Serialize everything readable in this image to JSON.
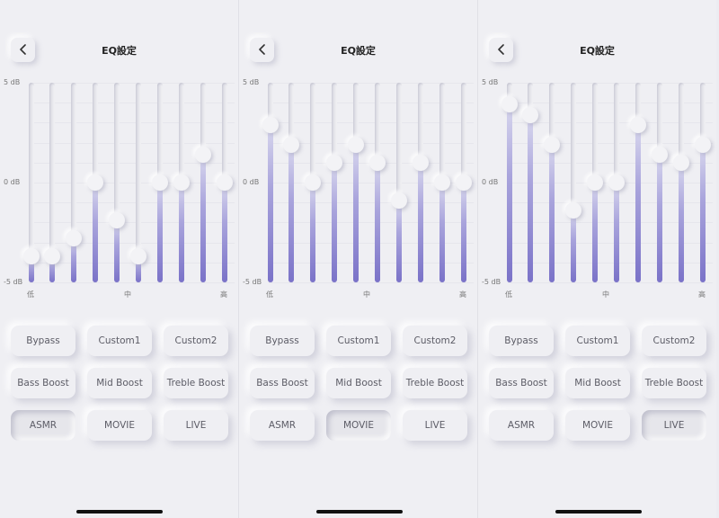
{
  "title": "EQ設定",
  "db_labels": {
    "top": "5 dB",
    "mid": "0 dB",
    "bottom": "-5 dB"
  },
  "axis_labels": {
    "low": "低",
    "mid": "中",
    "high": "高"
  },
  "presets": [
    "Bypass",
    "Custom1",
    "Custom2",
    "Bass Boost",
    "Mid Boost",
    "Treble Boost",
    "ASMR",
    "MOVIE",
    "LIVE"
  ],
  "colors": {
    "fill_dark": "#7a72c8",
    "fill_light": "#d9d8ee",
    "background": "#efeff3"
  },
  "panels": [
    {
      "selected_preset": "ASMR",
      "bands_db": [
        -3.7,
        -3.7,
        -2.8,
        0,
        -1.9,
        -3.7,
        0,
        0,
        1.4,
        0
      ]
    },
    {
      "selected_preset": "MOVIE",
      "bands_db": [
        2.9,
        1.9,
        0,
        1,
        1.9,
        1,
        -0.9,
        1,
        0,
        0
      ]
    },
    {
      "selected_preset": "LIVE",
      "bands_db": [
        3.9,
        3.4,
        1.9,
        -1.4,
        0,
        0,
        2.9,
        1.4,
        1,
        1.9
      ]
    }
  ]
}
